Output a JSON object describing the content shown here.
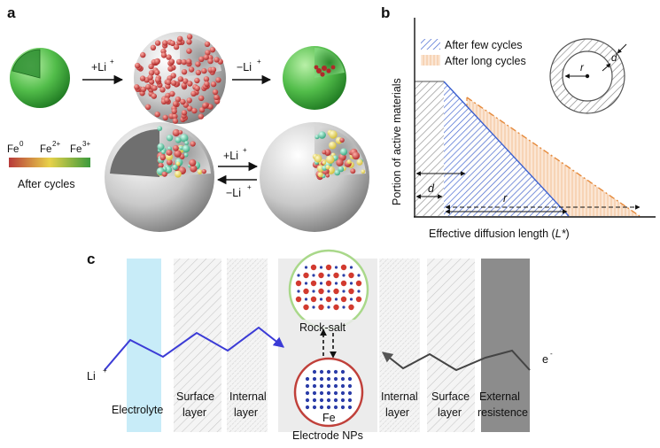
{
  "panel_a": {
    "label": "a",
    "arrow_top_left": "+Li",
    "arrow_top_left_sup": "+",
    "arrow_top_right": "−Li",
    "arrow_top_right_sup": "+",
    "arrow_bottom_fwd": "+Li",
    "arrow_bottom_fwd_sup": "+",
    "arrow_bottom_back": "−Li",
    "arrow_bottom_back_sup": "+",
    "legend": {
      "fe0": "Fe",
      "fe0_sup": "0",
      "fe2": "Fe",
      "fe2_sup": "2+",
      "fe3": "Fe",
      "fe3_sup": "3+",
      "caption": "After cycles",
      "color_fe0": "#b83a3a",
      "color_fe2": "#e8d24a",
      "color_fe3": "#3c9a3c"
    }
  },
  "panel_b": {
    "label": "b",
    "ylabel": "Portion of active materials",
    "xlabel": "Effective diffusion length (",
    "xlabel_italic": "L*",
    "xlabel_end": ")",
    "legend_few": "After few cycles",
    "legend_long": "After long cycles",
    "label_d": "d",
    "label_r": "r",
    "inset_r": "r",
    "inset_d": "d",
    "color_few": "#3a5fcf",
    "color_long": "#f0a868"
  },
  "panel_c": {
    "label": "c",
    "li": "Li",
    "li_sup": "+",
    "e": "e",
    "e_sup": "-",
    "electrolyte": "Electrolyte",
    "surface_left_1": "Surface",
    "surface_left_2": "layer",
    "internal_left_1": "Internal",
    "internal_left_2": "layer",
    "rock_salt": "Rock-salt",
    "fe": "Fe",
    "electrode": "Electrode NPs",
    "internal_right_1": "Internal",
    "internal_right_2": "layer",
    "surface_right_1": "Surface",
    "surface_right_2": "layer",
    "external_1": "External",
    "external_2": "resistence",
    "color_electrolyte": "#c8ecf8",
    "color_external": "#8c8c8c",
    "color_li_path": "#3b3bd6",
    "color_e_path": "#444444"
  }
}
